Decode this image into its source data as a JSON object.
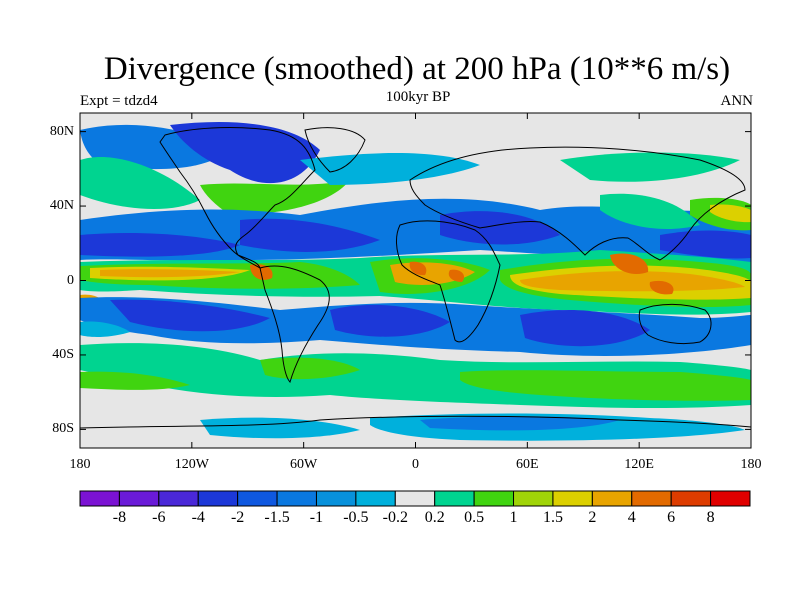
{
  "title": "Divergence (smoothed) at 200 hPa (10**6 m/s)",
  "left_subtitle": "Expt = tdzd4",
  "center_subtitle": "100kyr BP",
  "right_subtitle": "ANN",
  "lat_ticks": [
    {
      "value": 80,
      "label": "80N"
    },
    {
      "value": 40,
      "label": "40N"
    },
    {
      "value": 0,
      "label": "0"
    },
    {
      "value": -40,
      "label": "40S"
    },
    {
      "value": -80,
      "label": "80S"
    }
  ],
  "lon_ticks": [
    {
      "value": -180,
      "label": "180"
    },
    {
      "value": -120,
      "label": "120W"
    },
    {
      "value": -60,
      "label": "60W"
    },
    {
      "value": 0,
      "label": "0"
    },
    {
      "value": 60,
      "label": "60E"
    },
    {
      "value": 120,
      "label": "120E"
    },
    {
      "value": 180,
      "label": "180"
    }
  ],
  "colorbar": {
    "labels": [
      "-8",
      "-6",
      "-4",
      "-2",
      "-1.5",
      "-1",
      "-0.5",
      "-0.2",
      "0.2",
      "0.5",
      "1",
      "1.5",
      "2",
      "4",
      "6",
      "8"
    ],
    "colors": [
      "#7b12d3",
      "#6a1ad8",
      "#4a28d8",
      "#1c38d8",
      "#0f58e0",
      "#0a78e0",
      "#0891db",
      "#00b0dc",
      "#e6e6e6",
      "#00d490",
      "#40d410",
      "#a0d408",
      "#dcd000",
      "#e8a400",
      "#e26a00",
      "#dd3c00",
      "#e00000"
    ]
  },
  "map_colors": {
    "background": "#e6e6e6",
    "deep_neg": "#1c38d8",
    "mid_neg": "#0a78e0",
    "light_neg": "#00b0dc",
    "light_pos": "#00d490",
    "mid_pos": "#40d410",
    "high_pos": "#dcd000",
    "very_high_pos": "#e8a400",
    "max_pos": "#e26a00"
  }
}
